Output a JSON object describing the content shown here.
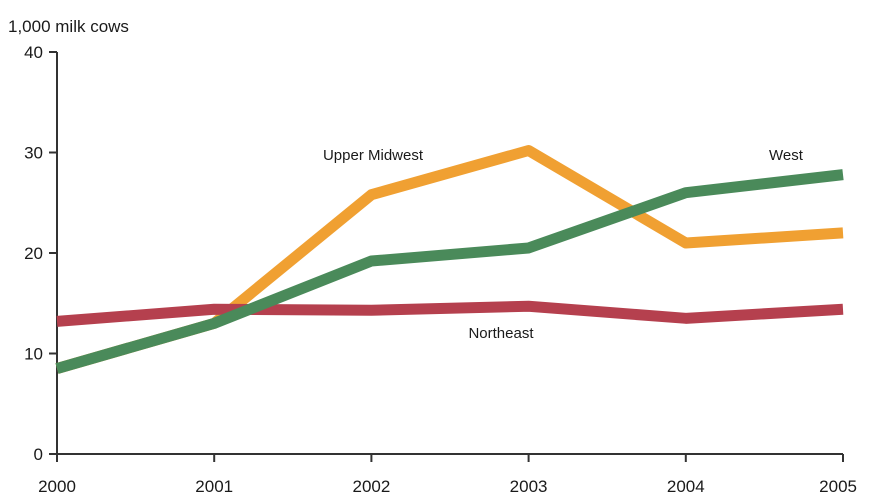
{
  "chart_data": {
    "type": "line",
    "title": "",
    "ylabel": "1,000 milk cows",
    "xlabel": "",
    "x": [
      "2000",
      "2001",
      "2002",
      "2003",
      "2004",
      "2005"
    ],
    "ylim": [
      0,
      40
    ],
    "yticks": [
      "0",
      "10",
      "20",
      "30",
      "40"
    ],
    "grid": false,
    "legend": "inline labels",
    "series": [
      {
        "name": "Upper Midwest",
        "color": "#f0a032",
        "values": [
          8.5,
          13,
          25.8,
          30.2,
          21,
          22
        ]
      },
      {
        "name": "West",
        "color": "#4a8a5a",
        "values": [
          8.5,
          13,
          19.2,
          20.5,
          26,
          27.8
        ]
      },
      {
        "name": "Northeast",
        "color": "#b5404e",
        "values": [
          13.2,
          14.4,
          14.3,
          14.7,
          13.5,
          14.4
        ]
      }
    ]
  }
}
